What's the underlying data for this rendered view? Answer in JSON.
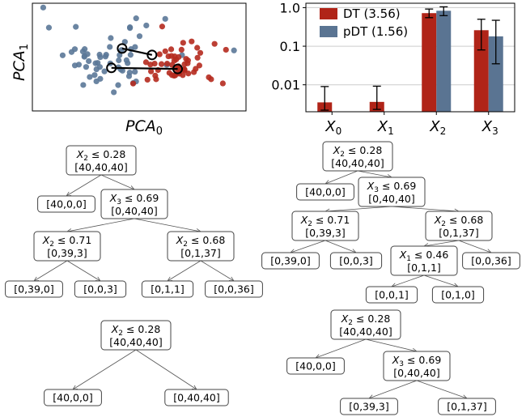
{
  "colors": {
    "dt": "#b02418",
    "pdt": "#5a7492",
    "dt_scatter": "#b52a1e",
    "pdt_scatter": "#5b7898"
  },
  "scatter": {
    "xlabel_main": "PCA",
    "xlabel_sub": "0",
    "ylabel_main": "PCA",
    "ylabel_sub": "1",
    "arrows": [
      {
        "from": [
          0.42,
          0.58
        ],
        "to": [
          0.56,
          0.52
        ]
      },
      {
        "from": [
          0.37,
          0.4
        ],
        "to": [
          0.68,
          0.39
        ]
      }
    ]
  },
  "chart_data": {
    "type": "bar",
    "categories": [
      "X_0",
      "X_1",
      "X_2",
      "X_3"
    ],
    "category_labels": [
      {
        "main": "X",
        "sub": "0"
      },
      {
        "main": "X",
        "sub": "1"
      },
      {
        "main": "X",
        "sub": "2"
      },
      {
        "main": "X",
        "sub": "3"
      }
    ],
    "yscale": "log",
    "ylim": [
      0.002,
      1.3
    ],
    "yticks": [
      {
        "value": 0.01,
        "label": "0.01"
      },
      {
        "value": 0.1,
        "label": "0.1"
      },
      {
        "value": 1.0,
        "label": "1.0"
      }
    ],
    "grid": true,
    "legend_position": "top-left",
    "series": [
      {
        "name": "DT (3.56)",
        "values": [
          0.0035,
          0.0036,
          0.72,
          0.26
        ],
        "err_low": [
          0.0022,
          0.0023,
          0.55,
          0.08
        ],
        "err_high": [
          0.009,
          0.0092,
          0.92,
          0.5
        ]
      },
      {
        "name": "pDT (1.56)",
        "values": [
          null,
          null,
          0.83,
          0.18
        ],
        "err_low": [
          null,
          null,
          0.62,
          0.035
        ],
        "err_high": [
          null,
          null,
          1.05,
          0.47
        ]
      }
    ]
  },
  "trees": {
    "tree_a": {
      "nodes": [
        {
          "id": "r",
          "cond": "X",
          "sub": "2",
          "op": " ≤ 0.28",
          "counts": "[40,40,40]"
        },
        {
          "id": "l1",
          "counts": "[40,0,0]"
        },
        {
          "id": "r1",
          "cond": "X",
          "sub": "3",
          "op": " ≤ 0.69",
          "counts": "[0,40,40]"
        },
        {
          "id": "r1l",
          "cond": "X",
          "sub": "2",
          "op": " ≤ 0.71",
          "counts": "[0,39,3]"
        },
        {
          "id": "r1r",
          "cond": "X",
          "sub": "2",
          "op": " ≤ 0.68",
          "counts": "[0,1,37]"
        },
        {
          "id": "ll",
          "counts": "[0,39,0]"
        },
        {
          "id": "lr",
          "counts": "[0,0,3]"
        },
        {
          "id": "rl",
          "counts": "[0,1,1]"
        },
        {
          "id": "rr",
          "counts": "[0,0,36]"
        }
      ]
    },
    "tree_b": {
      "nodes": [
        {
          "id": "r",
          "cond": "X",
          "sub": "2",
          "op": " ≤ 0.28",
          "counts": "[40,40,40]"
        },
        {
          "id": "l1",
          "counts": "[40,0,0]"
        },
        {
          "id": "r1",
          "cond": "X",
          "sub": "3",
          "op": " ≤ 0.69",
          "counts": "[0,40,40]"
        },
        {
          "id": "a",
          "cond": "X",
          "sub": "2",
          "op": " ≤ 0.71",
          "counts": "[0,39,3]"
        },
        {
          "id": "b",
          "cond": "X",
          "sub": "2",
          "op": " ≤ 0.68",
          "counts": "[0,1,37]"
        },
        {
          "id": "al",
          "counts": "[0,39,0]"
        },
        {
          "id": "ar",
          "counts": "[0,0,3]"
        },
        {
          "id": "c",
          "cond": "X",
          "sub": "1",
          "op": " ≤ 0.46",
          "counts": "[0,1,1]"
        },
        {
          "id": "br",
          "counts": "[0,0,36]"
        },
        {
          "id": "cl",
          "counts": "[0,0,1]"
        },
        {
          "id": "cr",
          "counts": "[0,1,0]"
        }
      ]
    },
    "tree_c": {
      "nodes": [
        {
          "id": "r",
          "cond": "X",
          "sub": "2",
          "op": " ≤ 0.28",
          "counts": "[40,40,40]"
        },
        {
          "id": "l",
          "counts": "[40,0,0]"
        },
        {
          "id": "rr",
          "counts": "[0,40,40]"
        }
      ]
    },
    "tree_d": {
      "nodes": [
        {
          "id": "r",
          "cond": "X",
          "sub": "2",
          "op": " ≤ 0.28",
          "counts": "[40,40,40]"
        },
        {
          "id": "l",
          "counts": "[40,0,0]"
        },
        {
          "id": "r1",
          "cond": "X",
          "sub": "3",
          "op": " ≤ 0.69",
          "counts": "[0,40,40]"
        },
        {
          "id": "a",
          "counts": "[0,39,3]"
        },
        {
          "id": "b",
          "counts": "[0,1,37]"
        }
      ]
    }
  }
}
